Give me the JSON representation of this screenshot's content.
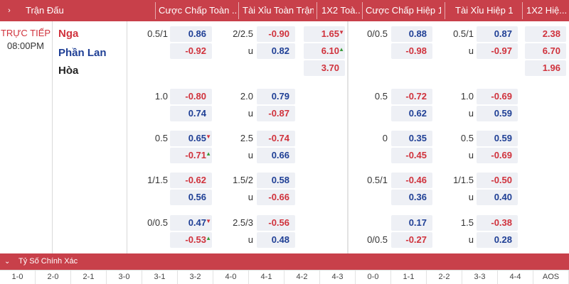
{
  "header": {
    "chevron": "›",
    "columns": [
      "Trận Đấu",
      "Cược Chấp Toàn ...",
      "Tài Xỉu Toàn Trận",
      "1X2 Toà...",
      "Cược Chấp Hiệp 1",
      "Tài Xỉu Hiệp 1",
      "1X2 Hiệ..."
    ]
  },
  "match": {
    "status": "TRỰC TIẾP",
    "time": "08:00PM",
    "home": "Nga",
    "away": "Phần Lan",
    "draw": "Hòa"
  },
  "rows": [
    {
      "ah_line": "0.5/1",
      "ah_home": "0.86",
      "ah_away": "-0.92",
      "ou_line": "2/2.5",
      "ou_over": "-0.90",
      "ou_u": "u",
      "ou_under": "0.82",
      "x12_home": "1.65",
      "x12_away": "6.10",
      "x12_draw": "3.70",
      "h1_ah_line": "0/0.5",
      "h1_ah_home": "0.88",
      "h1_ah_away": "-0.98",
      "h1_ou_line": "0.5/1",
      "h1_ou_over": "0.87",
      "h1_ou_u": "u",
      "h1_ou_under": "-0.97",
      "h1_x12_home": "2.38",
      "h1_x12_away": "6.70",
      "h1_x12_draw": "1.96"
    },
    {
      "ah_line": "1.0",
      "ah_home": "-0.80",
      "ah_away": "0.74",
      "ou_line": "2.0",
      "ou_over": "0.79",
      "ou_u": "u",
      "ou_under": "-0.87",
      "h1_ah_line": "0.5",
      "h1_ah_home": "-0.72",
      "h1_ah_away": "0.62",
      "h1_ou_line": "1.0",
      "h1_ou_over": "-0.69",
      "h1_ou_u": "u",
      "h1_ou_under": "0.59"
    },
    {
      "ah_line": "0.5",
      "ah_home": "0.65",
      "ah_away": "-0.71",
      "ou_line": "2.5",
      "ou_over": "-0.74",
      "ou_u": "u",
      "ou_under": "0.66",
      "h1_ah_line": "0",
      "h1_ah_home": "0.35",
      "h1_ah_away": "-0.45",
      "h1_ou_line": "0.5",
      "h1_ou_over": "0.59",
      "h1_ou_u": "u",
      "h1_ou_under": "-0.69"
    },
    {
      "ah_line": "1/1.5",
      "ah_home": "-0.62",
      "ah_away": "0.56",
      "ou_line": "1.5/2",
      "ou_over": "0.58",
      "ou_u": "u",
      "ou_under": "-0.66",
      "h1_ah_line": "0.5/1",
      "h1_ah_home": "-0.46",
      "h1_ah_away": "0.36",
      "h1_ou_line": "1/1.5",
      "h1_ou_over": "-0.50",
      "h1_ou_u": "u",
      "h1_ou_under": "0.40"
    },
    {
      "ah_line": "0/0.5",
      "ah_home": "0.47",
      "ah_away": "-0.53",
      "ou_line": "2.5/3",
      "ou_over": "-0.56",
      "ou_u": "u",
      "ou_under": "0.48",
      "h1_ah_line2": "0/0.5",
      "h1_ah_home": "0.17",
      "h1_ah_away": "-0.27",
      "h1_ou_line": "1.5",
      "h1_ou_over": "-0.38",
      "h1_ou_u": "u",
      "h1_ou_under": "0.28"
    }
  ],
  "bottom": {
    "chevron": "⌄",
    "title": "Tỷ Số Chính Xác",
    "scores": [
      "1-0",
      "2-0",
      "2-1",
      "3-0",
      "3-1",
      "3-2",
      "4-0",
      "4-1",
      "4-2",
      "4-3",
      "0-0",
      "1-1",
      "2-2",
      "3-3",
      "4-4",
      "AOS"
    ]
  },
  "colors": {
    "header_bg": "#c8404a",
    "positive": "#1f3f95",
    "negative": "#d0323c",
    "arrow_up": "#3a9a3a",
    "arrow_down": "#d0323c",
    "box_bg": "#eef0f5"
  },
  "icons": {
    "arrow_up": "▲",
    "arrow_down": "▼"
  }
}
